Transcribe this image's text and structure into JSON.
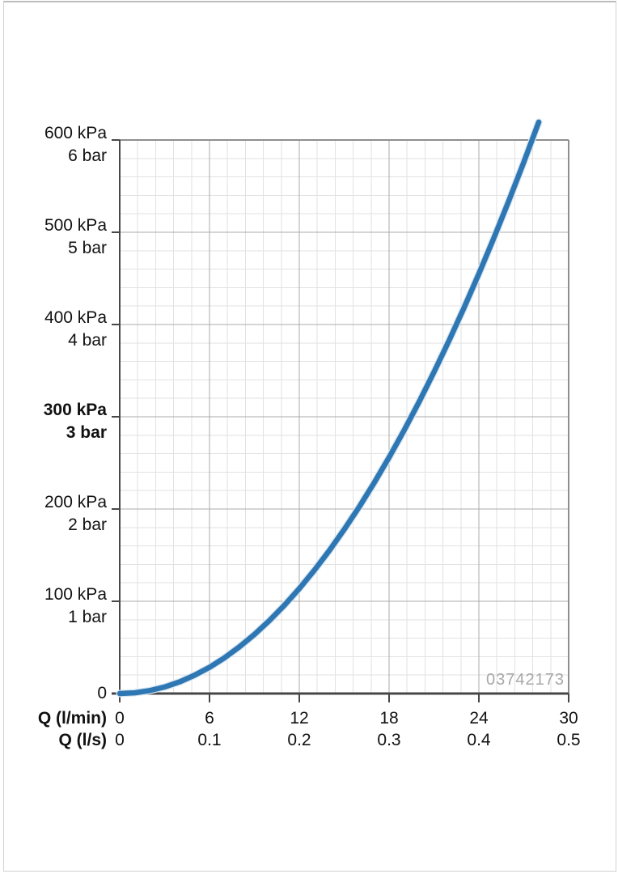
{
  "chart_data": {
    "type": "line",
    "title": "",
    "watermark": "03742173",
    "x_axis": {
      "range_lmin": [
        0,
        30
      ],
      "tick_positions_lmin": [
        0,
        6,
        12,
        18,
        24,
        30
      ],
      "rows": [
        {
          "label": "Q (l/min)",
          "tick_labels": [
            "0",
            "6",
            "12",
            "18",
            "24",
            "30"
          ]
        },
        {
          "label": "Q (l/s)",
          "tick_labels": [
            "0",
            "0.1",
            "0.2",
            "0.3",
            "0.4",
            "0.5"
          ]
        }
      ]
    },
    "y_axis": {
      "range_kpa": [
        0,
        600
      ],
      "origin_label": "0",
      "ticks": [
        {
          "value": 600,
          "kpa": "600 kPa",
          "bar": "6 bar",
          "bold": false
        },
        {
          "value": 500,
          "kpa": "500 kPa",
          "bar": "5 bar",
          "bold": false
        },
        {
          "value": 400,
          "kpa": "400 kPa",
          "bar": "4 bar",
          "bold": false
        },
        {
          "value": 300,
          "kpa": "300 kPa",
          "bar": "3 bar",
          "bold": true
        },
        {
          "value": 200,
          "kpa": "200 kPa",
          "bar": "2 bar",
          "bold": false
        },
        {
          "value": 100,
          "kpa": "100 kPa",
          "bar": "1 bar",
          "bold": false
        }
      ]
    },
    "grid": {
      "minor_step_lmin": 1.2,
      "major_step_lmin": 6,
      "minor_step_kpa": 20,
      "major_step_kpa": 100,
      "grid_on": true,
      "legend": "none"
    },
    "series": [
      {
        "name": "pressure-loss-curve",
        "color": "#2e77b3",
        "q_lmin": [
          0,
          1,
          2,
          3,
          4,
          5,
          6,
          7,
          8,
          9,
          10,
          11,
          12,
          13,
          14,
          15,
          16,
          17,
          18,
          19,
          20,
          21,
          22,
          23,
          24,
          25,
          26,
          27,
          28
        ],
        "p_kpa": [
          0,
          0.8,
          3.2,
          7.1,
          12.6,
          19.8,
          28.4,
          38.7,
          50.6,
          64,
          79,
          95.6,
          113.8,
          133.5,
          154.8,
          177.8,
          202.2,
          228.3,
          256,
          285.2,
          316,
          348.4,
          382.4,
          417.9,
          455,
          493.8,
          534,
          575.9,
          619.4
        ]
      }
    ],
    "colors": {
      "curve": "#2e77b3",
      "curve_halo": "#d6e5f2",
      "grid_minor": "#e2e2e2",
      "grid_major": "#ababab",
      "plot_border": "#8f8f8f",
      "axis": "#474747",
      "text": "#111111",
      "watermark": "#a8a8a8"
    }
  }
}
